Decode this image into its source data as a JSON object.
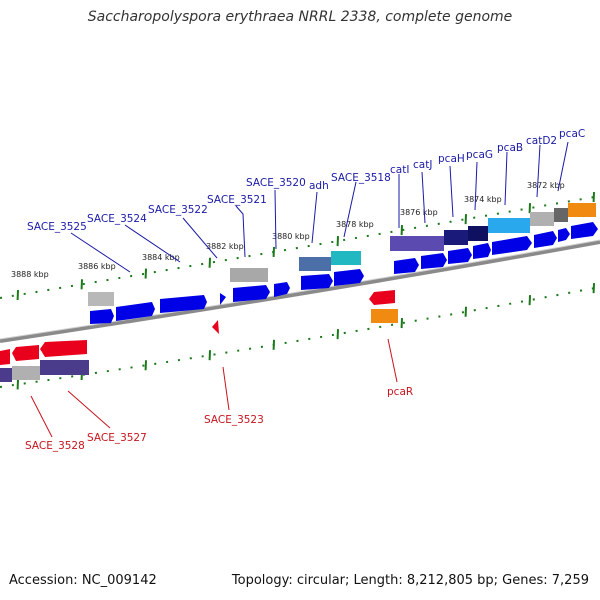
{
  "title": "Saccharopolyspora erythraea NRRL 2338, complete genome",
  "footer": {
    "accession": "Accession: NC_009142",
    "topology": "Topology: circular; Length: 8,212,805 bp; Genes: 7,259"
  },
  "ticks": [
    "3888 kbp",
    "3886 kbp",
    "3884 kbp",
    "3882 kbp",
    "3880 kbp",
    "3878 kbp",
    "3876 kbp",
    "3874 kbp",
    "3872 kbp"
  ],
  "forward_genes": [
    "SACE_3525",
    "SACE_3524",
    "SACE_3522",
    "SACE_3521",
    "SACE_3520",
    "adh",
    "SACE_3518",
    "catI",
    "catJ",
    "pcaH",
    "pcaG",
    "pcaB",
    "catD2",
    "pcaC"
  ],
  "reverse_genes": [
    "SACE_3528",
    "SACE_3527",
    "SACE_3523",
    "pcaR"
  ],
  "colors": {
    "forward_label": "#1a1aa8",
    "reverse_label": "#c8141e",
    "cds_forward": "#0000e6",
    "cds_reverse": "#e8001c",
    "tick": "#1a7a1a",
    "backbone": "#888888"
  }
}
